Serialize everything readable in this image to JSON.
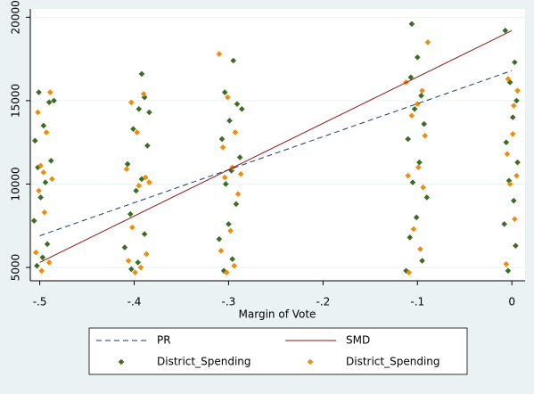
{
  "chart_data": {
    "type": "scatter",
    "xlabel": "Margin of Vote",
    "xlim": [
      -0.51,
      0.014
    ],
    "ylim": [
      4200,
      20500
    ],
    "xticks": [
      {
        "value": -0.5,
        "label": "-.5"
      },
      {
        "value": -0.4,
        "label": "-.4"
      },
      {
        "value": -0.3,
        "label": "-.3"
      },
      {
        "value": -0.2,
        "label": "-.2"
      },
      {
        "value": -0.1,
        "label": "-.1"
      },
      0
    ],
    "yticks": [
      5000,
      10000,
      15000,
      20000
    ],
    "grid": true,
    "legend": "bottom",
    "series": [
      {
        "name": "PR",
        "type": "line",
        "style": "dashed",
        "color": "#1a3a7a",
        "x": [
          -0.5,
          0
        ],
        "values": [
          6900,
          16800
        ]
      },
      {
        "name": "SMD",
        "type": "line",
        "style": "solid",
        "color": "#8b1a1a",
        "x": [
          -0.5,
          0
        ],
        "values": [
          5300,
          19200
        ]
      },
      {
        "name": "District_Spending",
        "type": "scatter",
        "color": "#3b6e22",
        "x": [
          -0.503,
          -0.497,
          -0.492,
          -0.506,
          -0.499,
          -0.494,
          -0.502,
          -0.488,
          -0.505,
          -0.496,
          -0.49,
          -0.501,
          -0.485,
          -0.403,
          -0.396,
          -0.41,
          -0.389,
          -0.404,
          -0.398,
          -0.392,
          -0.407,
          -0.386,
          -0.401,
          -0.395,
          -0.389,
          -0.392,
          -0.384,
          -0.305,
          -0.296,
          -0.31,
          -0.3,
          -0.292,
          -0.303,
          -0.297,
          -0.288,
          -0.307,
          -0.299,
          -0.291,
          -0.304,
          -0.295,
          -0.286,
          -0.112,
          -0.095,
          -0.108,
          -0.101,
          -0.09,
          -0.105,
          -0.098,
          -0.11,
          -0.093,
          -0.103,
          -0.096,
          -0.107,
          -0.1,
          -0.106,
          -0.004,
          0.004,
          -0.008,
          0.002,
          -0.003,
          0.006,
          -0.006,
          0.001,
          0.005,
          -0.002,
          0.003,
          -0.007
        ],
        "values": [
          5100,
          5600,
          6400,
          7800,
          9200,
          10100,
          11000,
          11400,
          12600,
          13500,
          14900,
          15500,
          15000,
          4900,
          5300,
          6200,
          7000,
          8200,
          9600,
          10300,
          11200,
          12300,
          13300,
          14500,
          15200,
          16600,
          14300,
          4800,
          5500,
          6700,
          7600,
          8800,
          10000,
          10800,
          11600,
          12700,
          13800,
          14800,
          15500,
          17400,
          14500,
          4800,
          5400,
          6800,
          8000,
          9200,
          10100,
          11300,
          12700,
          13600,
          14500,
          15300,
          16400,
          17600,
          19600,
          4800,
          6300,
          7600,
          9000,
          10200,
          11300,
          12500,
          14000,
          15000,
          16100,
          17300,
          19200
        ]
      },
      {
        "name": "District_Spending",
        "type": "scatter",
        "color": "#f08c0a",
        "x": [
          -0.498,
          -0.49,
          -0.504,
          -0.495,
          -0.501,
          -0.487,
          -0.499,
          -0.493,
          -0.502,
          -0.489,
          -0.496,
          -0.399,
          -0.393,
          -0.406,
          -0.387,
          -0.402,
          -0.395,
          -0.388,
          -0.408,
          -0.397,
          -0.403,
          -0.39,
          -0.384,
          -0.302,
          -0.294,
          -0.308,
          -0.298,
          -0.29,
          -0.304,
          -0.296,
          -0.306,
          -0.293,
          -0.301,
          -0.31,
          -0.287,
          -0.109,
          -0.097,
          -0.104,
          -0.094,
          -0.11,
          -0.099,
          -0.092,
          -0.106,
          -0.1,
          -0.095,
          -0.089,
          -0.112,
          -0.006,
          0.003,
          -0.002,
          0.005,
          -0.005,
          0.002,
          0.006,
          -0.004,
          0.001
        ],
        "values": [
          4800,
          5300,
          5900,
          8300,
          9600,
          10300,
          11100,
          13100,
          14300,
          15500,
          10700,
          4700,
          5000,
          5400,
          5800,
          7400,
          9900,
          10400,
          10900,
          13100,
          14900,
          15400,
          10100,
          4700,
          5100,
          6000,
          7200,
          9400,
          10400,
          11000,
          12200,
          13100,
          15200,
          17800,
          10600,
          4700,
          6100,
          7300,
          9800,
          10500,
          11000,
          12900,
          14100,
          14800,
          15600,
          18500,
          16100,
          5200,
          7900,
          10000,
          10500,
          11800,
          14700,
          15600,
          16300,
          13000
        ]
      }
    ]
  }
}
